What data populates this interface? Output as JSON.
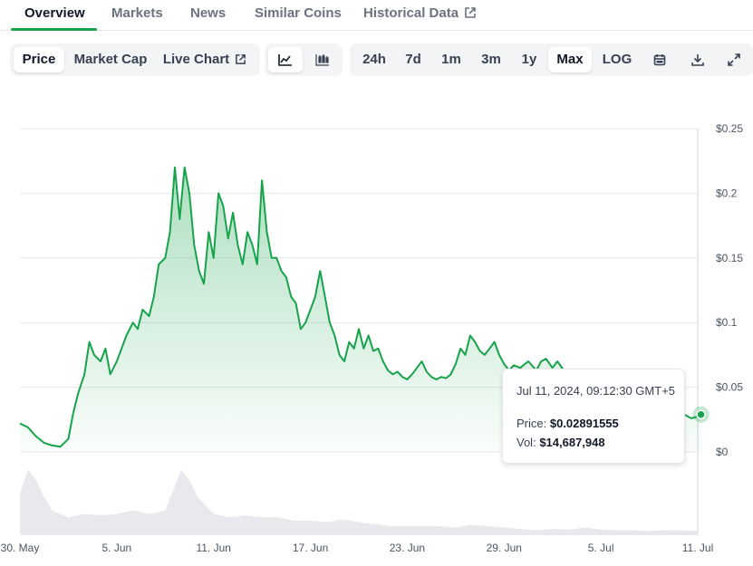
{
  "tabs": [
    {
      "label": "Overview",
      "active": true
    },
    {
      "label": "Markets"
    },
    {
      "label": "News"
    },
    {
      "label": "Similar Coins"
    },
    {
      "label": "Historical Data",
      "icon": "external-link-icon"
    }
  ],
  "toolbar": {
    "chart_kind": [
      {
        "label": "Price",
        "active": true
      },
      {
        "label": "Market Cap"
      },
      {
        "label": "Live Chart",
        "icon": "external-link-icon"
      }
    ],
    "chart_style": [
      {
        "icon": "line-chart-icon",
        "active": true
      },
      {
        "icon": "candlestick-chart-icon"
      }
    ],
    "ranges": [
      {
        "label": "24h"
      },
      {
        "label": "7d"
      },
      {
        "label": "1m"
      },
      {
        "label": "3m"
      },
      {
        "label": "1y"
      },
      {
        "label": "Max",
        "active": true
      },
      {
        "label": "LOG"
      }
    ],
    "actions": [
      "calendar-icon",
      "download-icon",
      "expand-icon"
    ]
  },
  "tooltip": {
    "time": "Jul 11, 2024, 09:12:30 GMT+5",
    "price_label": "Price:",
    "price_value": "$0.02891555",
    "vol_label": "Vol:",
    "vol_value": "$14,687,948"
  },
  "colors": {
    "line": "#16a34a",
    "accent": "#16a34a"
  },
  "chart_data": {
    "type": "area",
    "ylim": [
      0,
      0.25
    ],
    "yticks": [
      {
        "value": 0.25,
        "label": "$0.25"
      },
      {
        "value": 0.2,
        "label": "$0.2"
      },
      {
        "value": 0.15,
        "label": "$0.15"
      },
      {
        "value": 0.1,
        "label": "$0.1"
      },
      {
        "value": 0.05,
        "label": "$0.05"
      },
      {
        "value": 0,
        "label": "$0"
      }
    ],
    "xticks": [
      {
        "day": 0,
        "label": "30. May"
      },
      {
        "day": 6,
        "label": "5. Jun"
      },
      {
        "day": 12,
        "label": "11. Jun"
      },
      {
        "day": 18,
        "label": "17. Jun"
      },
      {
        "day": 24,
        "label": "23. Jun"
      },
      {
        "day": 30,
        "label": "29. Jun"
      },
      {
        "day": 36,
        "label": "5. Jul"
      },
      {
        "day": 42,
        "label": "11. Jul"
      }
    ],
    "grid": true,
    "series": [
      {
        "points": [
          [
            0,
            0.022
          ],
          [
            0.5,
            0.019
          ],
          [
            1,
            0.012
          ],
          [
            1.5,
            0.007
          ],
          [
            2,
            0.005
          ],
          [
            2.5,
            0.004
          ],
          [
            3,
            0.01
          ],
          [
            3.3,
            0.03
          ],
          [
            3.6,
            0.045
          ],
          [
            4,
            0.06
          ],
          [
            4.3,
            0.085
          ],
          [
            4.6,
            0.075
          ],
          [
            5,
            0.07
          ],
          [
            5.3,
            0.08
          ],
          [
            5.6,
            0.06
          ],
          [
            6,
            0.07
          ],
          [
            6.3,
            0.08
          ],
          [
            6.6,
            0.09
          ],
          [
            7,
            0.1
          ],
          [
            7.3,
            0.095
          ],
          [
            7.6,
            0.11
          ],
          [
            8,
            0.105
          ],
          [
            8.3,
            0.12
          ],
          [
            8.6,
            0.145
          ],
          [
            9,
            0.15
          ],
          [
            9.3,
            0.17
          ],
          [
            9.6,
            0.22
          ],
          [
            9.9,
            0.18
          ],
          [
            10.2,
            0.22
          ],
          [
            10.5,
            0.2
          ],
          [
            10.8,
            0.16
          ],
          [
            11.1,
            0.14
          ],
          [
            11.4,
            0.13
          ],
          [
            11.7,
            0.17
          ],
          [
            12,
            0.15
          ],
          [
            12.3,
            0.2
          ],
          [
            12.6,
            0.19
          ],
          [
            12.9,
            0.165
          ],
          [
            13.2,
            0.185
          ],
          [
            13.5,
            0.16
          ],
          [
            13.8,
            0.145
          ],
          [
            14.1,
            0.17
          ],
          [
            14.4,
            0.16
          ],
          [
            14.7,
            0.145
          ],
          [
            15,
            0.21
          ],
          [
            15.3,
            0.17
          ],
          [
            15.6,
            0.15
          ],
          [
            15.9,
            0.15
          ],
          [
            16.2,
            0.14
          ],
          [
            16.5,
            0.135
          ],
          [
            16.8,
            0.12
          ],
          [
            17.1,
            0.115
          ],
          [
            17.4,
            0.095
          ],
          [
            17.7,
            0.1
          ],
          [
            18,
            0.11
          ],
          [
            18.3,
            0.12
          ],
          [
            18.6,
            0.14
          ],
          [
            18.9,
            0.12
          ],
          [
            19.2,
            0.1
          ],
          [
            19.5,
            0.09
          ],
          [
            19.8,
            0.075
          ],
          [
            20.1,
            0.07
          ],
          [
            20.4,
            0.085
          ],
          [
            20.7,
            0.08
          ],
          [
            21,
            0.095
          ],
          [
            21.3,
            0.08
          ],
          [
            21.6,
            0.09
          ],
          [
            21.9,
            0.078
          ],
          [
            22.2,
            0.08
          ],
          [
            22.5,
            0.07
          ],
          [
            22.8,
            0.063
          ],
          [
            23.1,
            0.06
          ],
          [
            23.4,
            0.062
          ],
          [
            23.7,
            0.058
          ],
          [
            24,
            0.056
          ],
          [
            24.3,
            0.06
          ],
          [
            24.6,
            0.065
          ],
          [
            24.9,
            0.07
          ],
          [
            25.2,
            0.062
          ],
          [
            25.5,
            0.058
          ],
          [
            25.8,
            0.056
          ],
          [
            26.1,
            0.058
          ],
          [
            26.4,
            0.057
          ],
          [
            26.7,
            0.06
          ],
          [
            27,
            0.068
          ],
          [
            27.3,
            0.08
          ],
          [
            27.6,
            0.075
          ],
          [
            27.9,
            0.09
          ],
          [
            28.2,
            0.085
          ],
          [
            28.5,
            0.078
          ],
          [
            28.8,
            0.075
          ],
          [
            29.1,
            0.08
          ],
          [
            29.4,
            0.085
          ],
          [
            29.7,
            0.075
          ],
          [
            30,
            0.068
          ],
          [
            30.3,
            0.063
          ],
          [
            30.6,
            0.067
          ],
          [
            31,
            0.065
          ],
          [
            31.5,
            0.07
          ],
          [
            32,
            0.063
          ],
          [
            32.3,
            0.07
          ],
          [
            32.6,
            0.072
          ],
          [
            33,
            0.065
          ],
          [
            33.3,
            0.07
          ],
          [
            33.7,
            0.063
          ],
          [
            41.0,
            0.03
          ],
          [
            41.3,
            0.028
          ],
          [
            41.6,
            0.026
          ],
          [
            41.9,
            0.027
          ],
          [
            42.2,
            0.0289
          ]
        ]
      }
    ],
    "volume": [
      [
        0,
        0.6
      ],
      [
        0.5,
        0.95
      ],
      [
        1,
        0.8
      ],
      [
        1.5,
        0.55
      ],
      [
        2,
        0.35
      ],
      [
        3,
        0.25
      ],
      [
        4,
        0.3
      ],
      [
        5,
        0.28
      ],
      [
        6,
        0.3
      ],
      [
        7,
        0.35
      ],
      [
        8,
        0.3
      ],
      [
        9,
        0.35
      ],
      [
        10,
        0.95
      ],
      [
        10.5,
        0.8
      ],
      [
        11,
        0.55
      ],
      [
        12,
        0.3
      ],
      [
        13,
        0.25
      ],
      [
        14,
        0.28
      ],
      [
        15,
        0.25
      ],
      [
        16,
        0.25
      ],
      [
        17,
        0.2
      ],
      [
        18,
        0.2
      ],
      [
        19,
        0.18
      ],
      [
        20,
        0.22
      ],
      [
        21,
        0.18
      ],
      [
        22,
        0.15
      ],
      [
        23,
        0.12
      ],
      [
        24,
        0.12
      ],
      [
        25,
        0.12
      ],
      [
        26,
        0.12
      ],
      [
        27,
        0.1
      ],
      [
        28,
        0.14
      ],
      [
        29,
        0.12
      ],
      [
        30,
        0.1
      ],
      [
        31,
        0.08
      ],
      [
        32,
        0.06
      ],
      [
        33,
        0.08
      ],
      [
        34,
        0.07
      ],
      [
        35,
        0.1
      ],
      [
        36,
        0.07
      ],
      [
        37,
        0.06
      ],
      [
        38,
        0.06
      ],
      [
        39,
        0.05
      ],
      [
        40,
        0.06
      ],
      [
        41,
        0.06
      ],
      [
        42,
        0.05
      ]
    ],
    "marker": {
      "day": 42.2,
      "value": 0.0289
    }
  }
}
